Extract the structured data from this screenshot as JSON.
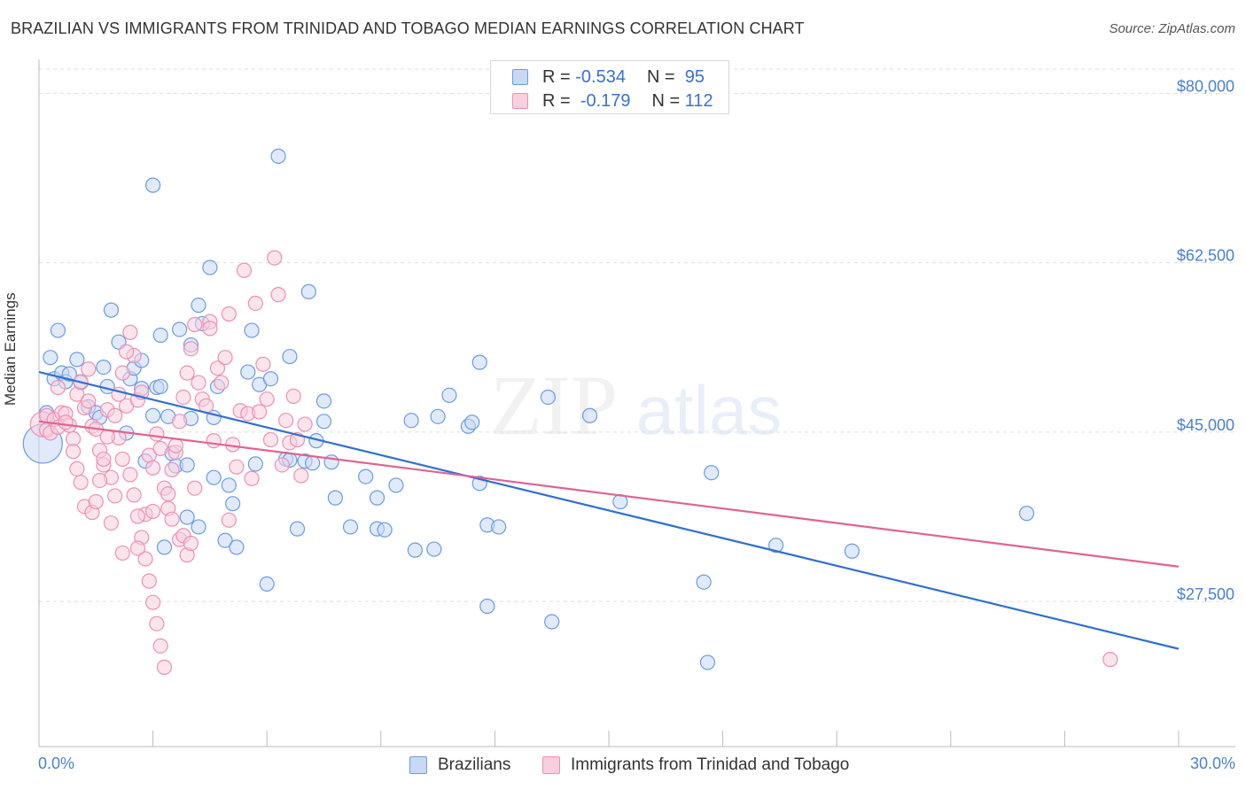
{
  "header": {
    "title": "BRAZILIAN VS IMMIGRANTS FROM TRINIDAD AND TOBAGO MEDIAN EARNINGS CORRELATION CHART",
    "source": "Source: ZipAtlas.com"
  },
  "watermark": {
    "zip": "ZIP",
    "atlas": "atlas"
  },
  "legend_top": {
    "rows": [
      {
        "r_label": "R =",
        "r_value": "-0.534",
        "n_label": "N =",
        "n_value": "95"
      },
      {
        "r_label": "R =",
        "r_value": "-0.179",
        "n_label": "N =",
        "n_value": "112"
      }
    ]
  },
  "colors": {
    "blue": "#6a9be3",
    "blue_fill": "#c7d9f5",
    "blue_line": "#2f6fd0",
    "pink": "#ef8fb0",
    "pink_fill": "#f8cfde",
    "pink_line": "#e0638f",
    "tick": "#4a7fd4",
    "grid": "#dddddd"
  },
  "chart_data": {
    "type": "scatter",
    "title": "BRAZILIAN VS IMMIGRANTS FROM TRINIDAD AND TOBAGO MEDIAN EARNINGS CORRELATION CHART",
    "xlabel": "",
    "ylabel": "Median Earnings",
    "xlim": [
      0,
      30
    ],
    "ylim": [
      12500,
      82500
    ],
    "x_tick_labels": [
      "0.0%",
      "30.0%"
    ],
    "y_ticks": [
      27500,
      45000,
      62500,
      80000
    ],
    "y_tick_labels": [
      "$27,500",
      "$45,000",
      "$62,500",
      "$80,000"
    ],
    "grid": true,
    "legend_position": "bottom",
    "series": [
      {
        "name": "Brazilians",
        "color": "#6a9be3",
        "trend": {
          "x": [
            0,
            30
          ],
          "y": [
            51200,
            22600
          ]
        },
        "points": [
          [
            0.1,
            43.8
          ],
          [
            0.2,
            47.0
          ],
          [
            0.3,
            52.7
          ],
          [
            0.4,
            50.5
          ],
          [
            0.5,
            55.5
          ],
          [
            0.6,
            51.1
          ],
          [
            0.7,
            50.2
          ],
          [
            0.8,
            51.0
          ],
          [
            1.0,
            52.5
          ],
          [
            1.1,
            50.1
          ],
          [
            1.3,
            47.6
          ],
          [
            1.5,
            47.0
          ],
          [
            1.6,
            46.5
          ],
          [
            1.7,
            51.7
          ],
          [
            1.8,
            49.7
          ],
          [
            1.9,
            57.6
          ],
          [
            2.1,
            54.3
          ],
          [
            2.3,
            44.9
          ],
          [
            2.4,
            50.5
          ],
          [
            2.5,
            51.6
          ],
          [
            2.7,
            52.4
          ],
          [
            2.7,
            49.5
          ],
          [
            2.8,
            42.0
          ],
          [
            3.0,
            70.5
          ],
          [
            3.0,
            46.7
          ],
          [
            3.1,
            49.6
          ],
          [
            3.2,
            55.0
          ],
          [
            3.2,
            49.7
          ],
          [
            3.3,
            33.1
          ],
          [
            3.4,
            46.6
          ],
          [
            3.5,
            42.8
          ],
          [
            3.6,
            41.5
          ],
          [
            3.7,
            55.6
          ],
          [
            3.9,
            36.2
          ],
          [
            3.9,
            41.6
          ],
          [
            4.0,
            46.4
          ],
          [
            4.0,
            54.0
          ],
          [
            4.2,
            58.1
          ],
          [
            4.2,
            35.2
          ],
          [
            4.3,
            56.2
          ],
          [
            4.5,
            62.0
          ],
          [
            4.6,
            40.3
          ],
          [
            4.6,
            46.5
          ],
          [
            4.7,
            49.7
          ],
          [
            4.9,
            33.8
          ],
          [
            5.0,
            39.5
          ],
          [
            5.1,
            37.6
          ],
          [
            5.2,
            33.1
          ],
          [
            5.5,
            51.2
          ],
          [
            5.6,
            55.5
          ],
          [
            5.7,
            41.7
          ],
          [
            5.8,
            49.9
          ],
          [
            6.0,
            29.3
          ],
          [
            6.1,
            50.5
          ],
          [
            6.3,
            73.5
          ],
          [
            6.5,
            42.2
          ],
          [
            6.6,
            42.1
          ],
          [
            6.6,
            52.8
          ],
          [
            6.8,
            35.0
          ],
          [
            7.0,
            42.0
          ],
          [
            7.1,
            59.5
          ],
          [
            7.2,
            41.8
          ],
          [
            7.3,
            44.1
          ],
          [
            7.5,
            48.2
          ],
          [
            7.5,
            46.1
          ],
          [
            7.7,
            41.9
          ],
          [
            7.8,
            38.2
          ],
          [
            8.2,
            35.2
          ],
          [
            8.6,
            40.4
          ],
          [
            8.9,
            38.2
          ],
          [
            8.9,
            35.0
          ],
          [
            9.1,
            34.9
          ],
          [
            9.4,
            39.5
          ],
          [
            9.8,
            46.2
          ],
          [
            9.9,
            32.8
          ],
          [
            10.4,
            32.9
          ],
          [
            10.5,
            46.6
          ],
          [
            10.8,
            48.8
          ],
          [
            11.3,
            45.6
          ],
          [
            11.4,
            46.0
          ],
          [
            11.6,
            52.2
          ],
          [
            11.6,
            39.7
          ],
          [
            11.8,
            35.4
          ],
          [
            11.8,
            27.0
          ],
          [
            12.1,
            35.2
          ],
          [
            13.4,
            48.6
          ],
          [
            13.5,
            25.4
          ],
          [
            14.5,
            46.7
          ],
          [
            15.3,
            37.8
          ],
          [
            17.5,
            29.5
          ],
          [
            17.6,
            21.2
          ],
          [
            17.7,
            40.8
          ],
          [
            19.4,
            33.3
          ],
          [
            21.4,
            32.7
          ],
          [
            26.0,
            36.6
          ]
        ]
      },
      {
        "name": "Immigrants from Trinidad and Tobago",
        "color": "#ef8fb0",
        "trend": {
          "x": [
            0,
            30
          ],
          "y": [
            46100,
            31100
          ]
        },
        "points": [
          [
            0.1,
            45.8
          ],
          [
            0.2,
            46.7
          ],
          [
            0.2,
            45.2
          ],
          [
            0.3,
            44.9
          ],
          [
            0.4,
            46.3
          ],
          [
            0.5,
            45.5
          ],
          [
            0.6,
            47.0
          ],
          [
            0.7,
            46.9
          ],
          [
            0.8,
            45.7
          ],
          [
            0.9,
            44.3
          ],
          [
            1.0,
            48.9
          ],
          [
            1.1,
            50.2
          ],
          [
            1.2,
            47.5
          ],
          [
            1.3,
            51.5
          ],
          [
            1.3,
            48.2
          ],
          [
            1.4,
            45.6
          ],
          [
            1.5,
            45.3
          ],
          [
            1.6,
            43.1
          ],
          [
            1.7,
            41.6
          ],
          [
            1.8,
            47.3
          ],
          [
            1.9,
            40.3
          ],
          [
            2.0,
            38.4
          ],
          [
            2.1,
            44.4
          ],
          [
            2.2,
            42.2
          ],
          [
            2.3,
            47.7
          ],
          [
            2.4,
            55.3
          ],
          [
            2.5,
            52.9
          ],
          [
            2.6,
            48.3
          ],
          [
            2.7,
            49.1
          ],
          [
            2.8,
            36.5
          ],
          [
            2.9,
            42.6
          ],
          [
            3.0,
            41.3
          ],
          [
            3.1,
            44.8
          ],
          [
            3.2,
            43.3
          ],
          [
            3.3,
            39.2
          ],
          [
            3.4,
            37.1
          ],
          [
            3.5,
            36.0
          ],
          [
            3.6,
            42.9
          ],
          [
            3.7,
            33.9
          ],
          [
            3.8,
            34.3
          ],
          [
            3.9,
            32.3
          ],
          [
            4.0,
            33.5
          ],
          [
            4.1,
            39.2
          ],
          [
            4.2,
            50.1
          ],
          [
            4.3,
            48.4
          ],
          [
            4.4,
            47.7
          ],
          [
            4.5,
            56.4
          ],
          [
            4.6,
            44.1
          ],
          [
            4.7,
            51.6
          ],
          [
            4.8,
            50.1
          ],
          [
            4.9,
            52.7
          ],
          [
            5.0,
            57.2
          ],
          [
            5.1,
            43.7
          ],
          [
            5.2,
            41.4
          ],
          [
            5.3,
            47.2
          ],
          [
            5.4,
            61.7
          ],
          [
            5.5,
            46.9
          ],
          [
            5.6,
            40.2
          ],
          [
            5.7,
            58.3
          ],
          [
            5.8,
            47.1
          ],
          [
            5.9,
            52.0
          ],
          [
            6.0,
            48.4
          ],
          [
            6.1,
            44.2
          ],
          [
            6.2,
            63.0
          ],
          [
            6.3,
            59.2
          ],
          [
            6.4,
            41.6
          ],
          [
            6.5,
            46.2
          ],
          [
            6.6,
            43.9
          ],
          [
            6.7,
            48.7
          ],
          [
            6.8,
            44.2
          ],
          [
            6.9,
            40.5
          ],
          [
            7.0,
            45.8
          ],
          [
            0.5,
            49.6
          ],
          [
            0.7,
            46.0
          ],
          [
            0.9,
            43.0
          ],
          [
            1.1,
            39.8
          ],
          [
            1.2,
            37.3
          ],
          [
            1.4,
            36.7
          ],
          [
            1.5,
            37.8
          ],
          [
            1.6,
            40.0
          ],
          [
            1.7,
            42.2
          ],
          [
            1.8,
            44.5
          ],
          [
            2.0,
            46.7
          ],
          [
            2.1,
            48.9
          ],
          [
            2.2,
            51.1
          ],
          [
            2.3,
            53.3
          ],
          [
            2.4,
            40.6
          ],
          [
            2.5,
            38.5
          ],
          [
            2.6,
            36.3
          ],
          [
            2.7,
            34.1
          ],
          [
            2.8,
            31.9
          ],
          [
            2.9,
            29.6
          ],
          [
            3.0,
            27.4
          ],
          [
            3.1,
            25.2
          ],
          [
            3.2,
            22.9
          ],
          [
            3.3,
            20.7
          ],
          [
            3.4,
            38.6
          ],
          [
            3.5,
            41.1
          ],
          [
            3.6,
            43.6
          ],
          [
            3.7,
            46.1
          ],
          [
            3.8,
            48.6
          ],
          [
            3.9,
            51.1
          ],
          [
            4.0,
            53.6
          ],
          [
            4.1,
            56.1
          ],
          [
            1.0,
            41.2
          ],
          [
            1.9,
            35.6
          ],
          [
            2.2,
            32.5
          ],
          [
            2.6,
            33.0
          ],
          [
            3.0,
            36.8
          ],
          [
            4.5,
            55.7
          ],
          [
            5.0,
            35.9
          ],
          [
            28.2,
            21.5
          ]
        ]
      }
    ]
  },
  "legend_bottom": {
    "items": [
      {
        "label": "Brazilians"
      },
      {
        "label": "Immigrants from Trinidad and Tobago"
      }
    ]
  }
}
